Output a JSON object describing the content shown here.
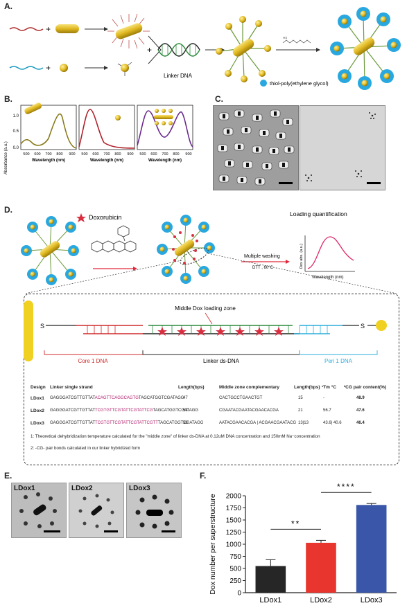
{
  "panels": {
    "A": "A.",
    "B": "B.",
    "C": "C.",
    "D": "D.",
    "E": "E.",
    "F": "F."
  },
  "panelA": {
    "linker_label": "Linker DNA",
    "peg_label": "thiol-poly(ethylene glycol)"
  },
  "panelB": {
    "ylabel": "Absorbance (a.u.)",
    "xlabel": "Wavelength   (nm)",
    "yticks": [
      "0.0",
      "0.5",
      "1.0"
    ],
    "xticks": [
      "500",
      "600",
      "700",
      "800",
      "900"
    ],
    "colors": [
      "#8a7a1c",
      "#b0202a",
      "#6b2a8e"
    ]
  },
  "panelD": {
    "dox_label": "Doxorubicin",
    "loading_label": "Loading quantification",
    "washing_label": "Multiple washing",
    "dtt_label": "DTT , 60°C",
    "dox_abs_label": "Dox abs. (a.u.)",
    "wavelength_label": "Wavelength (nm)",
    "middle_zone": "Middle Dox loading zone",
    "s_left": "S",
    "s_right": "S",
    "core_dna": "Core 1 DNA",
    "linker_ds": "Linker ds-DNA",
    "peri_dna": "Peri 1 DNA",
    "table_header": {
      "design": "Design",
      "linker": "Linker single strand",
      "length": "Length(bps)",
      "middle": "Middle zone complementary",
      "length2": "Length(bps)",
      "tm": "¹Tm °C",
      "cg": "²CG pair content(%)"
    },
    "rows": [
      {
        "design": "LDox1",
        "seq_a": "GAGGGATCGTTGTTAT",
        "seq_b": "ACAGTTCAGGCAGTG",
        "seq_c": "TAGCATGGTCGATAGG",
        "length": "47",
        "middle": "CACTGCCTGAACTGT",
        "length2": "15",
        "tm": "-",
        "cg": "48.9"
      },
      {
        "design": "LDox2",
        "seq_a": "GAGGGATCGTTGTTAT",
        "seq_b": "TCGTGTTCGTATTCGTATTCG",
        "seq_c": "TAGCATGGTCGATAGG",
        "length": "53",
        "middle": "CGAATACGAATACGAACACGA",
        "length2": "21",
        "tm": "56.7",
        "cg": "47.6"
      },
      {
        "design": "LDox3",
        "seq_a": "GAGGGATCGTTGTTAT",
        "seq_b": "TCGTGTTCGTATTCGTATTCGTT",
        "seq_c": "TAGCATGGTCGATAGG",
        "length": "58",
        "middle": "AATACGAACACGA | ACGAACGAATACG",
        "length2": "13|13",
        "tm": "43.6| 40.6",
        "cg": "46.4"
      }
    ],
    "note1": "1: Theoretical dehybridization temperature calculated for  the \"middle zone\" of  linker ds-DNA at 0.12uM DNA concentration  and 150mM Na⁺concentration",
    "note2": "2: -CG- pair bonds calculated in our linker hybridized form"
  },
  "panelE": {
    "labels": [
      "LDox1",
      "LDox2",
      "LDox3"
    ]
  },
  "chart_data": {
    "type": "bar",
    "categories": [
      "LDox1",
      "LDox2",
      "LDox3"
    ],
    "values": [
      550,
      1030,
      1810
    ],
    "errors": [
      130,
      50,
      30
    ],
    "colors": [
      "#262626",
      "#e8362e",
      "#3a56a8"
    ],
    "ylabel": "Dox number per superstructure",
    "ylim": [
      0,
      2000
    ],
    "yticks": [
      0,
      250,
      500,
      750,
      1000,
      1250,
      1500,
      1750,
      2000
    ],
    "significance": [
      {
        "from": "LDox1",
        "to": "LDox2",
        "label": "**"
      },
      {
        "from": "LDox2",
        "to": "LDox3",
        "label": "****"
      }
    ]
  }
}
